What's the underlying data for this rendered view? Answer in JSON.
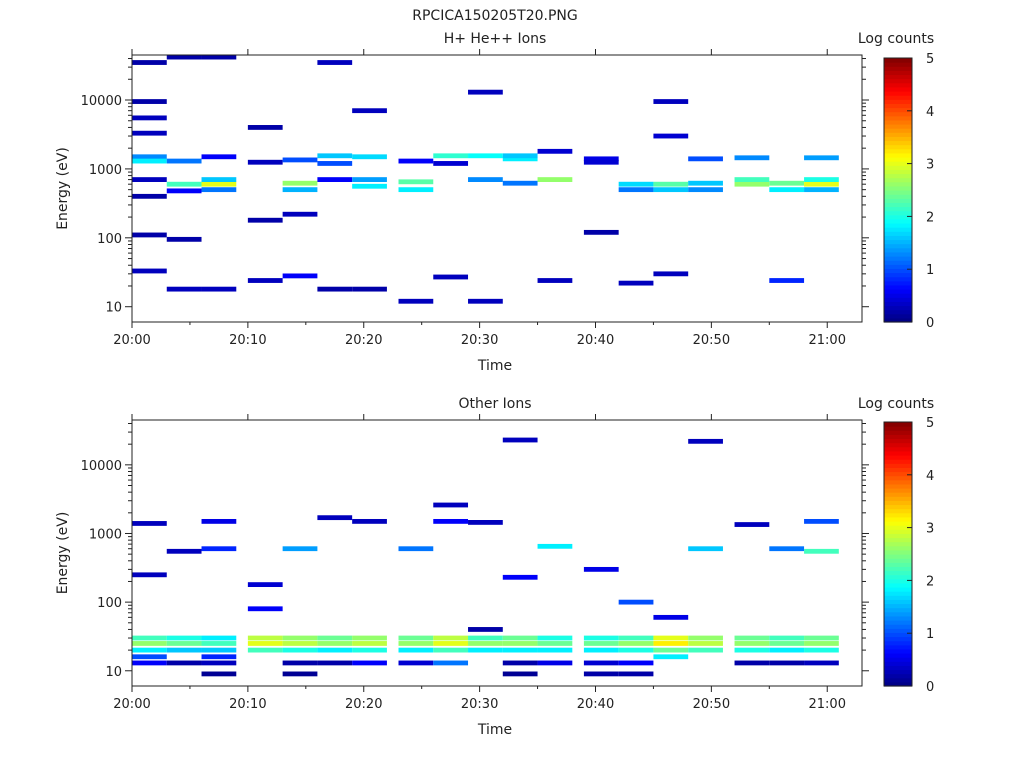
{
  "figure_title": "RPCICA150205T20.PNG",
  "chart_data": [
    {
      "type": "heatmap",
      "title": "H+ He++ Ions",
      "xlabel": "Time",
      "ylabel": "Energy (eV)",
      "xticks": [
        "20:00",
        "20:10",
        "20:20",
        "20:30",
        "20:40",
        "20:50",
        "21:00"
      ],
      "xlim": [
        "20:00",
        "21:03"
      ],
      "yticks": [
        "10",
        "100",
        "1000",
        "10000"
      ],
      "ylim": [
        6,
        45000
      ],
      "yscale": "log",
      "colorbar": {
        "label": "Log counts",
        "ticks": [
          "0",
          "1",
          "2",
          "3",
          "4",
          "5"
        ],
        "range": [
          0,
          5
        ],
        "colormap": "jet"
      },
      "time_bins": [
        "20:00",
        "20:03",
        "20:06",
        "20:10",
        "20:13",
        "20:16",
        "20:19",
        "20:23",
        "20:26",
        "20:29",
        "20:32",
        "20:35",
        "20:39",
        "20:42",
        "20:45",
        "20:48",
        "20:52",
        "20:55",
        "20:58"
      ],
      "cells": [
        {
          "t": 0,
          "e": 1500,
          "v": 1.3
        },
        {
          "t": 0,
          "e": 1300,
          "v": 1.8
        },
        {
          "t": 0,
          "e": 3300,
          "v": 0.3
        },
        {
          "t": 0,
          "e": 5500,
          "v": 0.3
        },
        {
          "t": 0,
          "e": 9500,
          "v": 0.2
        },
        {
          "t": 0,
          "e": 35000,
          "v": 0.2
        },
        {
          "t": 0,
          "e": 700,
          "v": 0.3
        },
        {
          "t": 0,
          "e": 400,
          "v": 0.2
        },
        {
          "t": 0,
          "e": 110,
          "v": 0.2
        },
        {
          "t": 0,
          "e": 33,
          "v": 0.3
        },
        {
          "t": 1,
          "e": 1300,
          "v": 1.2
        },
        {
          "t": 1,
          "e": 600,
          "v": 2.2
        },
        {
          "t": 1,
          "e": 480,
          "v": 0.6
        },
        {
          "t": 1,
          "e": 18,
          "v": 0.3
        },
        {
          "t": 1,
          "e": 42000,
          "v": 0.2
        },
        {
          "t": 1,
          "e": 95,
          "v": 0.2
        },
        {
          "t": 2,
          "e": 600,
          "v": 3.0
        },
        {
          "t": 2,
          "e": 700,
          "v": 1.6
        },
        {
          "t": 2,
          "e": 500,
          "v": 1.2
        },
        {
          "t": 2,
          "e": 1500,
          "v": 0.6
        },
        {
          "t": 2,
          "e": 18,
          "v": 0.3
        },
        {
          "t": 2,
          "e": 42000,
          "v": 0.2
        },
        {
          "t": 3,
          "e": 1250,
          "v": 0.3
        },
        {
          "t": 3,
          "e": 4000,
          "v": 0.2
        },
        {
          "t": 3,
          "e": 24,
          "v": 0.3
        },
        {
          "t": 3,
          "e": 180,
          "v": 0.2
        },
        {
          "t": 4,
          "e": 620,
          "v": 2.6
        },
        {
          "t": 4,
          "e": 500,
          "v": 1.5
        },
        {
          "t": 4,
          "e": 1350,
          "v": 1.0
        },
        {
          "t": 4,
          "e": 220,
          "v": 0.3
        },
        {
          "t": 4,
          "e": 28,
          "v": 0.6
        },
        {
          "t": 5,
          "e": 1550,
          "v": 1.6
        },
        {
          "t": 5,
          "e": 1200,
          "v": 1.0
        },
        {
          "t": 5,
          "e": 35000,
          "v": 0.3
        },
        {
          "t": 5,
          "e": 18,
          "v": 0.2
        },
        {
          "t": 5,
          "e": 700,
          "v": 0.6
        },
        {
          "t": 6,
          "e": 1500,
          "v": 1.7
        },
        {
          "t": 6,
          "e": 700,
          "v": 1.4
        },
        {
          "t": 6,
          "e": 560,
          "v": 1.8
        },
        {
          "t": 6,
          "e": 7000,
          "v": 0.3
        },
        {
          "t": 6,
          "e": 18,
          "v": 0.2
        },
        {
          "t": 7,
          "e": 650,
          "v": 2.3
        },
        {
          "t": 7,
          "e": 500,
          "v": 1.8
        },
        {
          "t": 7,
          "e": 12,
          "v": 0.3
        },
        {
          "t": 7,
          "e": 1300,
          "v": 0.6
        },
        {
          "t": 8,
          "e": 1550,
          "v": 2.1
        },
        {
          "t": 8,
          "e": 27,
          "v": 0.3
        },
        {
          "t": 8,
          "e": 1200,
          "v": 0.4
        },
        {
          "t": 9,
          "e": 1550,
          "v": 1.9
        },
        {
          "t": 9,
          "e": 700,
          "v": 1.3
        },
        {
          "t": 9,
          "e": 12,
          "v": 0.3
        },
        {
          "t": 9,
          "e": 13000,
          "v": 0.3
        },
        {
          "t": 10,
          "e": 1400,
          "v": 1.8
        },
        {
          "t": 10,
          "e": 1550,
          "v": 1.6
        },
        {
          "t": 10,
          "e": 620,
          "v": 1.2
        },
        {
          "t": 11,
          "e": 700,
          "v": 2.6
        },
        {
          "t": 11,
          "e": 1800,
          "v": 0.4
        },
        {
          "t": 11,
          "e": 24,
          "v": 0.3
        },
        {
          "t": 12,
          "e": 1400,
          "v": 0.5
        },
        {
          "t": 12,
          "e": 120,
          "v": 0.2
        },
        {
          "t": 12,
          "e": 1250,
          "v": 0.4
        },
        {
          "t": 13,
          "e": 600,
          "v": 1.7
        },
        {
          "t": 13,
          "e": 500,
          "v": 1.2
        },
        {
          "t": 13,
          "e": 22,
          "v": 0.3
        },
        {
          "t": 14,
          "e": 600,
          "v": 2.3
        },
        {
          "t": 14,
          "e": 500,
          "v": 1.6
        },
        {
          "t": 14,
          "e": 3000,
          "v": 0.4
        },
        {
          "t": 14,
          "e": 30,
          "v": 0.3
        },
        {
          "t": 14,
          "e": 9500,
          "v": 0.3
        },
        {
          "t": 15,
          "e": 620,
          "v": 1.6
        },
        {
          "t": 15,
          "e": 500,
          "v": 1.3
        },
        {
          "t": 15,
          "e": 1400,
          "v": 1.0
        },
        {
          "t": 16,
          "e": 600,
          "v": 2.6
        },
        {
          "t": 16,
          "e": 700,
          "v": 2.2
        },
        {
          "t": 16,
          "e": 1450,
          "v": 1.3
        },
        {
          "t": 17,
          "e": 620,
          "v": 2.4
        },
        {
          "t": 17,
          "e": 500,
          "v": 1.8
        },
        {
          "t": 17,
          "e": 24,
          "v": 0.8
        },
        {
          "t": 18,
          "e": 600,
          "v": 3.0
        },
        {
          "t": 18,
          "e": 700,
          "v": 2.0
        },
        {
          "t": 18,
          "e": 1450,
          "v": 1.4
        },
        {
          "t": 18,
          "e": 500,
          "v": 1.5
        }
      ]
    },
    {
      "type": "heatmap",
      "title": "Other Ions",
      "xlabel": "Time",
      "ylabel": "Energy (eV)",
      "xticks": [
        "20:00",
        "20:10",
        "20:20",
        "20:30",
        "20:40",
        "20:50",
        "21:00"
      ],
      "xlim": [
        "20:00",
        "21:03"
      ],
      "yticks": [
        "10",
        "100",
        "1000",
        "10000"
      ],
      "ylim": [
        6,
        45000
      ],
      "yscale": "log",
      "colorbar": {
        "label": "Log counts",
        "ticks": [
          "0",
          "1",
          "2",
          "3",
          "4",
          "5"
        ],
        "range": [
          0,
          5
        ],
        "colormap": "jet"
      },
      "time_bins": [
        "20:00",
        "20:03",
        "20:06",
        "20:10",
        "20:13",
        "20:16",
        "20:19",
        "20:23",
        "20:26",
        "20:29",
        "20:32",
        "20:35",
        "20:39",
        "20:42",
        "20:45",
        "20:48",
        "20:52",
        "20:55",
        "20:58"
      ],
      "cells": [
        {
          "t": 0,
          "e": 30,
          "v": 2.2
        },
        {
          "t": 0,
          "e": 25,
          "v": 2.6
        },
        {
          "t": 0,
          "e": 20,
          "v": 1.8
        },
        {
          "t": 0,
          "e": 16,
          "v": 1.0
        },
        {
          "t": 0,
          "e": 13,
          "v": 0.6
        },
        {
          "t": 0,
          "e": 1400,
          "v": 0.3
        },
        {
          "t": 0,
          "e": 250,
          "v": 0.3
        },
        {
          "t": 1,
          "e": 30,
          "v": 2.0
        },
        {
          "t": 1,
          "e": 25,
          "v": 2.4
        },
        {
          "t": 1,
          "e": 20,
          "v": 1.6
        },
        {
          "t": 1,
          "e": 13,
          "v": 0.2
        },
        {
          "t": 1,
          "e": 550,
          "v": 0.3
        },
        {
          "t": 2,
          "e": 30,
          "v": 1.8
        },
        {
          "t": 2,
          "e": 25,
          "v": 2.2
        },
        {
          "t": 2,
          "e": 20,
          "v": 1.6
        },
        {
          "t": 2,
          "e": 16,
          "v": 0.8
        },
        {
          "t": 2,
          "e": 13,
          "v": 0.3
        },
        {
          "t": 2,
          "e": 9,
          "v": 0.1
        },
        {
          "t": 2,
          "e": 1500,
          "v": 0.5
        },
        {
          "t": 2,
          "e": 600,
          "v": 0.8
        },
        {
          "t": 3,
          "e": 30,
          "v": 2.8
        },
        {
          "t": 3,
          "e": 25,
          "v": 3.0
        },
        {
          "t": 3,
          "e": 20,
          "v": 2.2
        },
        {
          "t": 3,
          "e": 80,
          "v": 0.6
        },
        {
          "t": 3,
          "e": 180,
          "v": 0.4
        },
        {
          "t": 4,
          "e": 30,
          "v": 2.6
        },
        {
          "t": 4,
          "e": 25,
          "v": 2.8
        },
        {
          "t": 4,
          "e": 20,
          "v": 2.0
        },
        {
          "t": 4,
          "e": 13,
          "v": 0.2
        },
        {
          "t": 4,
          "e": 9,
          "v": 0.1
        },
        {
          "t": 4,
          "e": 600,
          "v": 1.4
        },
        {
          "t": 5,
          "e": 30,
          "v": 2.4
        },
        {
          "t": 5,
          "e": 25,
          "v": 2.6
        },
        {
          "t": 5,
          "e": 20,
          "v": 1.8
        },
        {
          "t": 5,
          "e": 13,
          "v": 0.2
        },
        {
          "t": 5,
          "e": 1700,
          "v": 0.3
        },
        {
          "t": 6,
          "e": 30,
          "v": 2.6
        },
        {
          "t": 6,
          "e": 25,
          "v": 2.8
        },
        {
          "t": 6,
          "e": 20,
          "v": 2.0
        },
        {
          "t": 6,
          "e": 13,
          "v": 0.6
        },
        {
          "t": 6,
          "e": 1500,
          "v": 0.3
        },
        {
          "t": 7,
          "e": 30,
          "v": 2.4
        },
        {
          "t": 7,
          "e": 25,
          "v": 2.6
        },
        {
          "t": 7,
          "e": 20,
          "v": 1.8
        },
        {
          "t": 7,
          "e": 13,
          "v": 0.4
        },
        {
          "t": 7,
          "e": 600,
          "v": 1.2
        },
        {
          "t": 8,
          "e": 30,
          "v": 2.8
        },
        {
          "t": 8,
          "e": 25,
          "v": 3.0
        },
        {
          "t": 8,
          "e": 20,
          "v": 2.2
        },
        {
          "t": 8,
          "e": 13,
          "v": 1.2
        },
        {
          "t": 8,
          "e": 1500,
          "v": 0.6
        },
        {
          "t": 8,
          "e": 2600,
          "v": 0.3
        },
        {
          "t": 9,
          "e": 30,
          "v": 2.2
        },
        {
          "t": 9,
          "e": 25,
          "v": 2.6
        },
        {
          "t": 9,
          "e": 20,
          "v": 1.8
        },
        {
          "t": 9,
          "e": 40,
          "v": 0.2
        },
        {
          "t": 9,
          "e": 1450,
          "v": 0.3
        },
        {
          "t": 10,
          "e": 30,
          "v": 2.4
        },
        {
          "t": 10,
          "e": 25,
          "v": 2.6
        },
        {
          "t": 10,
          "e": 20,
          "v": 1.8
        },
        {
          "t": 10,
          "e": 13,
          "v": 0.2
        },
        {
          "t": 10,
          "e": 9,
          "v": 0.1
        },
        {
          "t": 10,
          "e": 23000,
          "v": 0.3
        },
        {
          "t": 10,
          "e": 230,
          "v": 0.6
        },
        {
          "t": 11,
          "e": 30,
          "v": 2.0
        },
        {
          "t": 11,
          "e": 25,
          "v": 2.4
        },
        {
          "t": 11,
          "e": 20,
          "v": 1.8
        },
        {
          "t": 11,
          "e": 13,
          "v": 0.5
        },
        {
          "t": 11,
          "e": 650,
          "v": 1.8
        },
        {
          "t": 12,
          "e": 30,
          "v": 2.0
        },
        {
          "t": 12,
          "e": 25,
          "v": 2.4
        },
        {
          "t": 12,
          "e": 20,
          "v": 1.8
        },
        {
          "t": 12,
          "e": 13,
          "v": 0.4
        },
        {
          "t": 12,
          "e": 9,
          "v": 0.2
        },
        {
          "t": 12,
          "e": 300,
          "v": 0.5
        },
        {
          "t": 13,
          "e": 30,
          "v": 2.2
        },
        {
          "t": 13,
          "e": 25,
          "v": 2.6
        },
        {
          "t": 13,
          "e": 20,
          "v": 2.0
        },
        {
          "t": 13,
          "e": 13,
          "v": 0.6
        },
        {
          "t": 13,
          "e": 9,
          "v": 0.2
        },
        {
          "t": 13,
          "e": 100,
          "v": 1.0
        },
        {
          "t": 14,
          "e": 30,
          "v": 3.0
        },
        {
          "t": 14,
          "e": 25,
          "v": 3.2
        },
        {
          "t": 14,
          "e": 20,
          "v": 2.4
        },
        {
          "t": 14,
          "e": 16,
          "v": 1.8
        },
        {
          "t": 14,
          "e": 60,
          "v": 0.5
        },
        {
          "t": 15,
          "e": 30,
          "v": 2.6
        },
        {
          "t": 15,
          "e": 25,
          "v": 2.8
        },
        {
          "t": 15,
          "e": 20,
          "v": 2.2
        },
        {
          "t": 15,
          "e": 22000,
          "v": 0.3
        },
        {
          "t": 15,
          "e": 600,
          "v": 1.6
        },
        {
          "t": 16,
          "e": 30,
          "v": 2.4
        },
        {
          "t": 16,
          "e": 25,
          "v": 2.6
        },
        {
          "t": 16,
          "e": 20,
          "v": 2.0
        },
        {
          "t": 16,
          "e": 13,
          "v": 0.2
        },
        {
          "t": 16,
          "e": 1350,
          "v": 0.3
        },
        {
          "t": 17,
          "e": 30,
          "v": 2.2
        },
        {
          "t": 17,
          "e": 25,
          "v": 2.4
        },
        {
          "t": 17,
          "e": 20,
          "v": 1.8
        },
        {
          "t": 17,
          "e": 13,
          "v": 0.2
        },
        {
          "t": 17,
          "e": 600,
          "v": 1.2
        },
        {
          "t": 18,
          "e": 30,
          "v": 2.4
        },
        {
          "t": 18,
          "e": 25,
          "v": 2.6
        },
        {
          "t": 18,
          "e": 20,
          "v": 2.0
        },
        {
          "t": 18,
          "e": 13,
          "v": 0.3
        },
        {
          "t": 18,
          "e": 1500,
          "v": 1.0
        },
        {
          "t": 18,
          "e": 550,
          "v": 2.2
        }
      ]
    }
  ]
}
